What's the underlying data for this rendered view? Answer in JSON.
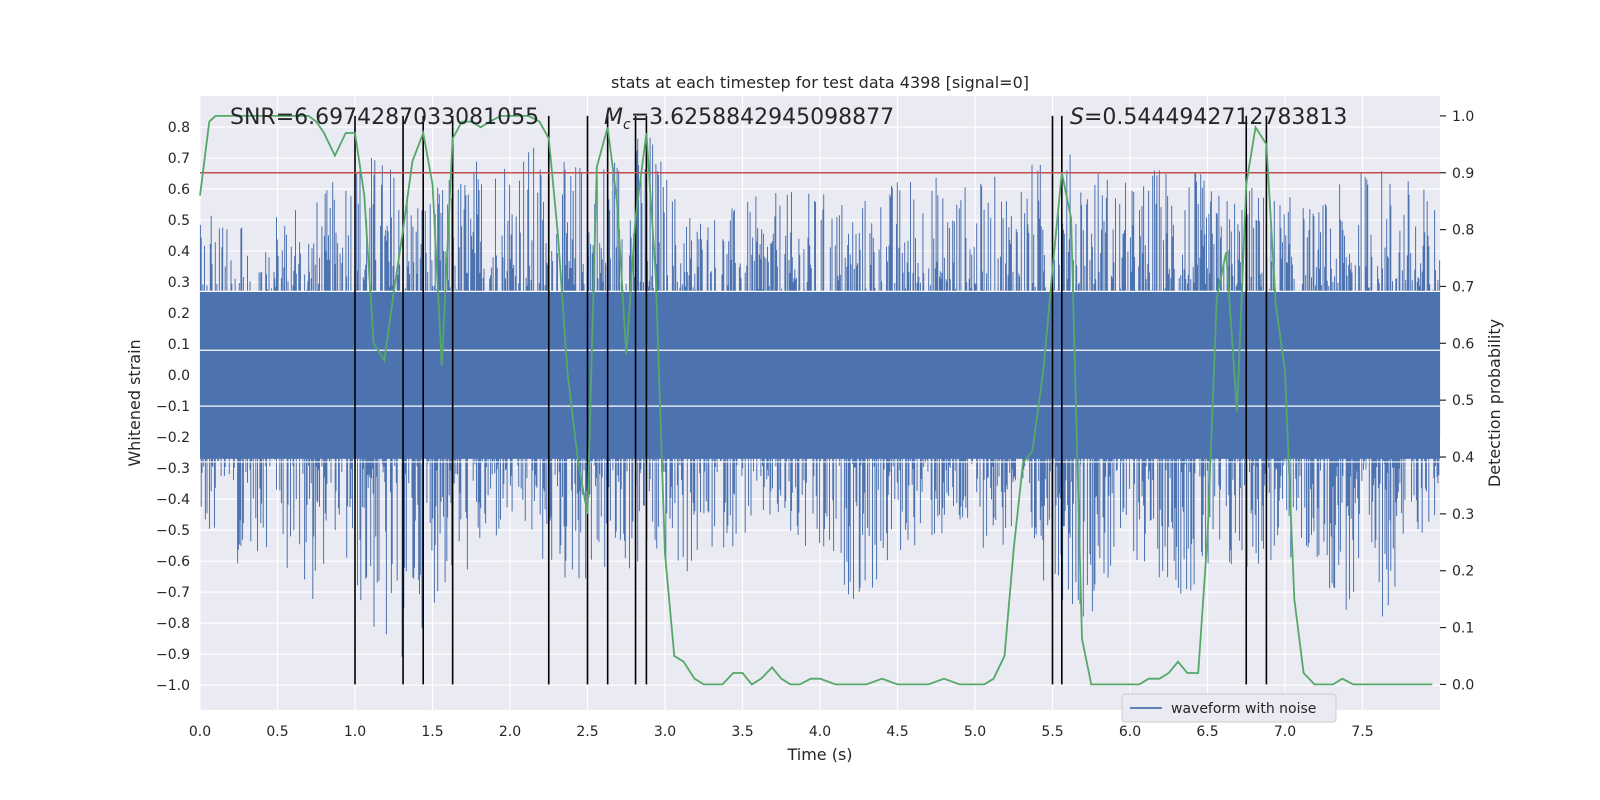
{
  "chart_data": {
    "type": "line",
    "title": "stats at each timestep for test data 4398 [signal=0]",
    "xlabel": "Time (s)",
    "ylabel_left": "Whitened strain",
    "ylabel_right": "Detection probability",
    "xlim": [
      0,
      8
    ],
    "ylim_left": [
      -1.08,
      0.9
    ],
    "ylim_right": [
      -0.045,
      1.035
    ],
    "x_ticks": [
      "0.0",
      "0.5",
      "1.0",
      "1.5",
      "2.0",
      "2.5",
      "3.0",
      "3.5",
      "4.0",
      "4.5",
      "5.0",
      "5.5",
      "6.0",
      "6.5",
      "7.0",
      "7.5"
    ],
    "y_left_ticks": [
      "0.8",
      "0.7",
      "0.6",
      "0.5",
      "0.4",
      "0.3",
      "0.2",
      "0.1",
      "0.0",
      "−0.1",
      "−0.2",
      "−0.3",
      "−0.4",
      "−0.5",
      "−0.6",
      "−0.7",
      "−0.8",
      "−0.9",
      "−1.0"
    ],
    "y_right_ticks": [
      "1.0",
      "0.9",
      "0.8",
      "0.7",
      "0.6",
      "0.5",
      "0.4",
      "0.3",
      "0.2",
      "0.1",
      "0.0"
    ],
    "grid": true,
    "legend_position": "lower-right",
    "annotations": {
      "snr": "SNR=6.6974287033081055",
      "mc_symbol": "M",
      "mc_sub": "c",
      "mc_value": "=3.6258842945098877",
      "s_symbol": "S",
      "s_value": "=0.5444942712783813"
    },
    "threshold": 0.9,
    "vertical_lines_x": [
      1.0,
      1.31,
      1.44,
      1.63,
      2.25,
      2.5,
      2.63,
      2.81,
      2.88,
      5.5,
      5.56,
      6.75,
      6.88
    ],
    "series": [
      {
        "name": "waveform with noise",
        "color": "#4c72b0",
        "axis": "left",
        "envelope": [
          {
            "x": 0.0,
            "hi": 0.5,
            "lo": -0.6
          },
          {
            "x": 0.06,
            "hi": 0.52,
            "lo": -0.5
          },
          {
            "x": 0.2,
            "hi": 0.46,
            "lo": -0.62
          },
          {
            "x": 0.5,
            "hi": 0.53,
            "lo": -0.55
          },
          {
            "x": 0.69,
            "hi": 0.55,
            "lo": -0.79
          },
          {
            "x": 0.88,
            "hi": 0.64,
            "lo": -0.5
          },
          {
            "x": 0.95,
            "hi": 0.79,
            "lo": -0.68
          },
          {
            "x": 1.25,
            "hi": 0.7,
            "lo": -1.0
          },
          {
            "x": 1.5,
            "hi": 0.6,
            "lo": -0.75
          },
          {
            "x": 1.75,
            "hi": 0.71,
            "lo": -0.65
          },
          {
            "x": 2.04,
            "hi": 0.82,
            "lo": -0.5
          },
          {
            "x": 2.3,
            "hi": 0.68,
            "lo": -0.7
          },
          {
            "x": 2.9,
            "hi": 0.82,
            "lo": -0.65
          },
          {
            "x": 3.1,
            "hi": 0.57,
            "lo": -0.68
          },
          {
            "x": 3.38,
            "hi": 0.54,
            "lo": -0.57
          },
          {
            "x": 3.66,
            "hi": 0.59,
            "lo": -0.5
          },
          {
            "x": 4.0,
            "hi": 0.6,
            "lo": -0.67
          },
          {
            "x": 4.3,
            "hi": 0.59,
            "lo": -0.75
          },
          {
            "x": 4.6,
            "hi": 0.68,
            "lo": -0.56
          },
          {
            "x": 5.0,
            "hi": 0.62,
            "lo": -0.55
          },
          {
            "x": 5.3,
            "hi": 0.69,
            "lo": -0.6
          },
          {
            "x": 5.7,
            "hi": 0.74,
            "lo": -0.8
          },
          {
            "x": 6.0,
            "hi": 0.62,
            "lo": -0.6
          },
          {
            "x": 6.3,
            "hi": 0.74,
            "lo": -0.7
          },
          {
            "x": 6.55,
            "hi": 0.6,
            "lo": -0.78
          },
          {
            "x": 6.75,
            "hi": 0.63,
            "lo": -0.64
          },
          {
            "x": 7.2,
            "hi": 0.55,
            "lo": -0.62
          },
          {
            "x": 7.55,
            "hi": 0.7,
            "lo": -0.93
          },
          {
            "x": 7.8,
            "hi": 0.65,
            "lo": -0.55
          },
          {
            "x": 8.0,
            "hi": 0.58,
            "lo": -0.5
          }
        ]
      },
      {
        "name": "",
        "color": "#55a868",
        "axis": "right",
        "x": [
          0.0,
          0.06,
          0.1,
          0.2,
          0.3,
          0.4,
          0.5,
          0.6,
          0.7,
          0.75,
          0.8,
          0.87,
          0.94,
          1.0,
          1.06,
          1.12,
          1.19,
          1.25,
          1.31,
          1.37,
          1.44,
          1.5,
          1.56,
          1.63,
          1.69,
          1.75,
          1.81,
          1.87,
          1.94,
          2.0,
          2.06,
          2.12,
          2.19,
          2.25,
          2.31,
          2.37,
          2.44,
          2.5,
          2.56,
          2.63,
          2.69,
          2.75,
          2.81,
          2.88,
          2.94,
          3.0,
          3.06,
          3.12,
          3.19,
          3.25,
          3.31,
          3.37,
          3.44,
          3.5,
          3.56,
          3.62,
          3.69,
          3.75,
          3.81,
          3.87,
          3.94,
          4.0,
          4.1,
          4.2,
          4.3,
          4.4,
          4.5,
          4.6,
          4.7,
          4.8,
          4.9,
          5.0,
          5.06,
          5.12,
          5.19,
          5.25,
          5.31,
          5.37,
          5.44,
          5.5,
          5.56,
          5.62,
          5.69,
          5.75,
          5.81,
          5.87,
          5.94,
          6.0,
          6.06,
          6.12,
          6.19,
          6.25,
          6.31,
          6.37,
          6.44,
          6.5,
          6.56,
          6.62,
          6.69,
          6.75,
          6.81,
          6.88,
          6.94,
          7.0,
          7.06,
          7.12,
          7.19,
          7.25,
          7.31,
          7.37,
          7.44,
          7.5,
          7.6,
          7.7,
          7.8,
          7.95
        ],
        "y": [
          0.86,
          0.99,
          1.0,
          1.0,
          1.0,
          1.0,
          1.0,
          1.0,
          1.0,
          0.99,
          0.97,
          0.93,
          0.97,
          0.97,
          0.86,
          0.6,
          0.57,
          0.69,
          0.8,
          0.92,
          0.97,
          0.88,
          0.56,
          0.96,
          0.99,
          0.99,
          0.98,
          0.99,
          1.0,
          1.0,
          1.0,
          1.0,
          0.99,
          0.96,
          0.79,
          0.55,
          0.39,
          0.3,
          0.91,
          0.98,
          0.85,
          0.58,
          0.82,
          0.97,
          0.72,
          0.23,
          0.05,
          0.04,
          0.01,
          0.0,
          0.0,
          0.0,
          0.02,
          0.02,
          0.0,
          0.01,
          0.03,
          0.01,
          0.0,
          0.0,
          0.01,
          0.01,
          0.0,
          0.0,
          0.0,
          0.01,
          0.0,
          0.0,
          0.0,
          0.01,
          0.0,
          0.0,
          0.0,
          0.01,
          0.05,
          0.24,
          0.39,
          0.41,
          0.55,
          0.73,
          0.9,
          0.82,
          0.08,
          0.0,
          0.0,
          0.0,
          0.0,
          0.0,
          0.0,
          0.01,
          0.01,
          0.02,
          0.04,
          0.02,
          0.02,
          0.26,
          0.68,
          0.76,
          0.48,
          0.88,
          0.98,
          0.95,
          0.67,
          0.55,
          0.15,
          0.02,
          0.0,
          0.0,
          0.0,
          0.01,
          0.0,
          0.0,
          0.0,
          0.0,
          0.0,
          0.0
        ]
      }
    ]
  }
}
